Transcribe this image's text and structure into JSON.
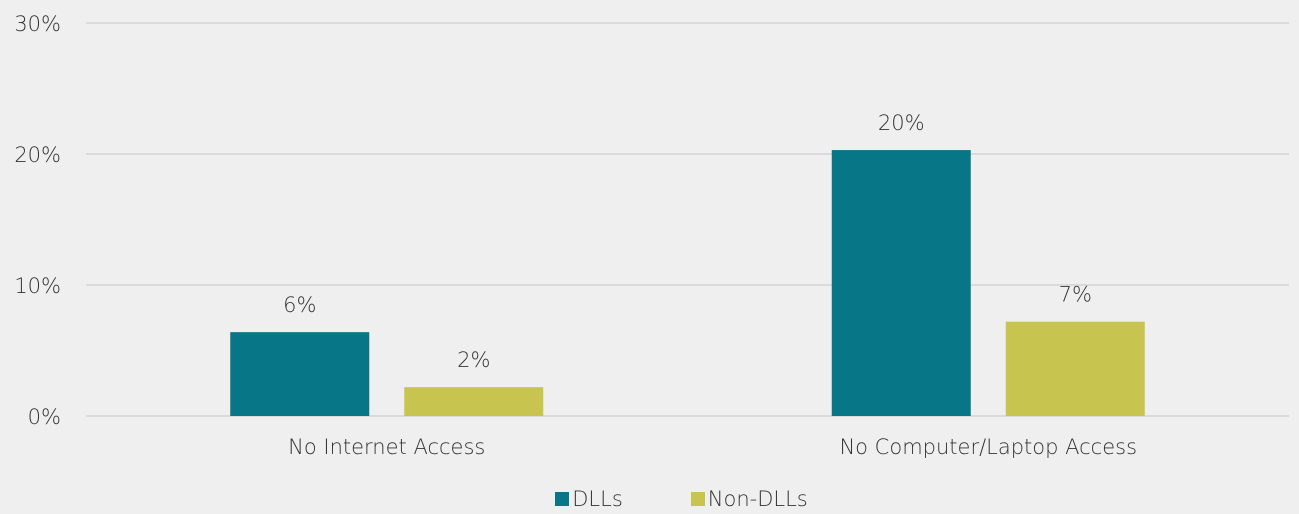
{
  "chart_data": {
    "type": "bar",
    "categories": [
      "No Internet Access",
      "No Computer/Laptop Access"
    ],
    "series": [
      {
        "name": "DLLs",
        "values": [
          6.4,
          20.3
        ],
        "labels": [
          "6%",
          "20%"
        ],
        "color": "#077787"
      },
      {
        "name": "Non-DLLs",
        "values": [
          2.2,
          7.2
        ],
        "labels": [
          "2%",
          "7%"
        ],
        "color": "#c7c44f"
      }
    ],
    "ylim": [
      0,
      30
    ],
    "yticks": [
      0,
      10,
      20,
      30
    ],
    "ytick_labels": [
      "0%",
      "10%",
      "20%",
      "30%"
    ],
    "grid": true,
    "legend_position": "bottom",
    "colors": {
      "background": "#efefef",
      "gridline": "#d4d4d4",
      "text": "#333333"
    }
  }
}
